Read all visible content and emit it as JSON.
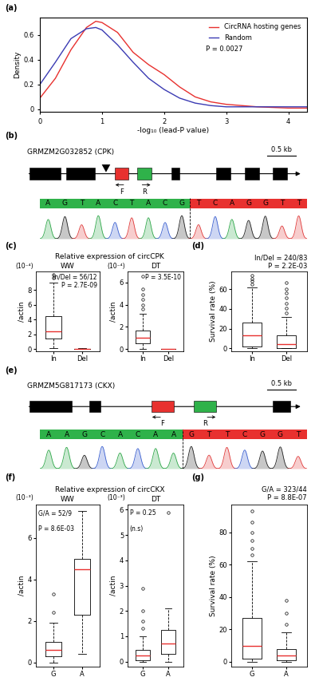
{
  "chart_data": [
    {
      "panel_label": "(a)",
      "type": "line",
      "xlabel": "-log₁₀ (lead-P value)",
      "ylabel": "Density",
      "annotations": [
        "P = 0.0027"
      ],
      "x": [
        0,
        0.25,
        0.5,
        0.75,
        0.9,
        1.0,
        1.25,
        1.5,
        1.75,
        2.0,
        2.25,
        2.5,
        2.75,
        3.0,
        3.5,
        4.0,
        4.3
      ],
      "series": [
        {
          "name": "CircRNA hosting genes",
          "color": "#e8312f",
          "values": [
            0.09,
            0.25,
            0.48,
            0.66,
            0.71,
            0.7,
            0.62,
            0.46,
            0.36,
            0.28,
            0.18,
            0.1,
            0.06,
            0.04,
            0.02,
            0.01,
            0.01
          ]
        },
        {
          "name": "Random",
          "color": "#3b3bb3",
          "values": [
            0.2,
            0.38,
            0.57,
            0.65,
            0.66,
            0.64,
            0.52,
            0.38,
            0.25,
            0.16,
            0.09,
            0.05,
            0.03,
            0.02,
            0.02,
            0.02,
            0.02
          ]
        }
      ],
      "xlim": [
        0,
        4.3
      ],
      "ylim": [
        -0.02,
        0.74
      ],
      "xticks": [
        0,
        1,
        2,
        3,
        4
      ],
      "yticks": [
        0,
        0.2,
        0.4,
        0.6
      ],
      "legend": "upper right"
    },
    {
      "panel_label": "(c)",
      "type": "box",
      "group_title": "Relative expression of circCPK",
      "title": "WW",
      "ylabel": "/actin",
      "scale_label": "(10⁻⁴)",
      "annotations": [
        "In/Del = 56/12",
        "P = 2.7E-09"
      ],
      "categories": [
        "In",
        "Del"
      ],
      "color": "#e8312f",
      "boxes": [
        {
          "whislo": 0.1,
          "q1": 1.4,
          "med": 2.4,
          "q3": 4.4,
          "whishi": 9.0,
          "fliers": [
            9.6,
            10.1
          ]
        },
        {
          "whislo": 0,
          "q1": 0,
          "med": 0,
          "q3": 0.05,
          "whishi": 0.08,
          "fliers": []
        }
      ],
      "ylim": [
        -0.3,
        10.5
      ],
      "yticks": [
        0,
        2,
        4,
        6,
        8
      ]
    },
    {
      "type": "box",
      "title": "DT",
      "ylabel": "/actin",
      "scale_label": "(10⁻⁴)",
      "annotations": [
        "P = 3.5E-10"
      ],
      "categories": [
        "In",
        "Del"
      ],
      "color": "#e8312f",
      "boxes": [
        {
          "whislo": 0.05,
          "q1": 0.5,
          "med": 1.0,
          "q3": 1.7,
          "whishi": 3.2,
          "fliers": [
            3.6,
            4.0,
            4.5,
            4.9,
            5.4,
            6.6
          ]
        },
        {
          "whislo": 0,
          "q1": 0,
          "med": 0,
          "q3": 0.03,
          "whishi": 0.05,
          "fliers": []
        }
      ],
      "ylim": [
        -0.2,
        7
      ],
      "yticks": [
        0,
        2,
        4,
        6
      ]
    },
    {
      "panel_label": "(d)",
      "type": "box",
      "ylabel": "Survival rate (%)",
      "annotations": [
        "In/Del = 240/83",
        "P = 2.2E-03"
      ],
      "categories": [
        "In",
        "Del"
      ],
      "color": "#e8312f",
      "boxes": [
        {
          "whislo": 0,
          "q1": 2,
          "med": 13,
          "q3": 26,
          "whishi": 62,
          "fliers": [
            65,
            68,
            71,
            74
          ]
        },
        {
          "whislo": 0,
          "q1": 0.5,
          "med": 4,
          "q3": 13,
          "whishi": 32,
          "fliers": [
            36,
            41,
            46,
            51,
            56,
            60,
            67
          ]
        }
      ],
      "ylim": [
        -3,
        78
      ],
      "yticks": [
        0,
        20,
        40,
        60
      ]
    },
    {
      "panel_label": "(f)",
      "type": "box",
      "group_title": "Relative expression of circCKX",
      "title": "WW",
      "ylabel": "/actin",
      "scale_label": "(10⁻³)",
      "annotations": [
        "G/A = 52/9",
        "P = 8.6E-03"
      ],
      "categories": [
        "G",
        "A"
      ],
      "color": "#e8312f",
      "boxes": [
        {
          "whislo": 0,
          "q1": 0.3,
          "med": 0.6,
          "q3": 1.0,
          "whishi": 1.9,
          "fliers": [
            2.4,
            3.3
          ]
        },
        {
          "whislo": 0.4,
          "q1": 2.3,
          "med": 4.5,
          "q3": 5.0,
          "whishi": 7.3,
          "fliers": []
        }
      ],
      "ylim": [
        -0.2,
        7.6
      ],
      "yticks": [
        0,
        2,
        4,
        6
      ]
    },
    {
      "type": "box",
      "title": "DT",
      "ylabel": "/actin",
      "scale_label": "(10⁻³)",
      "annotations": [
        "P = 0.25",
        "(n.s)"
      ],
      "categories": [
        "G",
        "A"
      ],
      "color": "#e8312f",
      "boxes": [
        {
          "whislo": 0,
          "q1": 0.05,
          "med": 0.25,
          "q3": 0.45,
          "whishi": 1.0,
          "fliers": [
            1.3,
            1.6,
            2.0,
            2.9
          ]
        },
        {
          "whislo": 0,
          "q1": 0.3,
          "med": 0.7,
          "q3": 1.25,
          "whishi": 2.1,
          "fliers": [
            5.9
          ]
        }
      ],
      "ylim": [
        -0.2,
        6.2
      ],
      "yticks": [
        0,
        1,
        2,
        3,
        4,
        5,
        6
      ]
    },
    {
      "panel_label": "(g)",
      "type": "box",
      "ylabel": "Survival rate (%)",
      "annotations": [
        "G/A = 323/44",
        "P = 8.8E-07"
      ],
      "categories": [
        "G",
        "A"
      ],
      "color": "#e8312f",
      "boxes": [
        {
          "whislo": 0,
          "q1": 2,
          "med": 10,
          "q3": 27,
          "whishi": 62,
          "fliers": [
            66,
            70,
            75,
            80,
            86,
            93
          ]
        },
        {
          "whislo": 0,
          "q1": 1,
          "med": 4,
          "q3": 8,
          "whishi": 18,
          "fliers": [
            23,
            30,
            38
          ]
        }
      ],
      "ylim": [
        -3,
        97
      ],
      "yticks": [
        0,
        20,
        40,
        60,
        80
      ]
    }
  ],
  "diagrams": [
    {
      "panel_label": "(b)",
      "gene": "GRMZM2G032852 (CPK)",
      "scale": "0.5 kb",
      "primers": [
        "F",
        "R"
      ],
      "sequence_left": "AGTACTACG",
      "sequence_right": "TCAGGTT"
    },
    {
      "panel_label": "(e)",
      "gene": "GRMZM5G817173 (CKX)",
      "scale": "0.5 kb",
      "primers": [
        "F",
        "R"
      ],
      "sequence_left": "AAGCACAA",
      "sequence_right": "GTTCGGT"
    }
  ]
}
